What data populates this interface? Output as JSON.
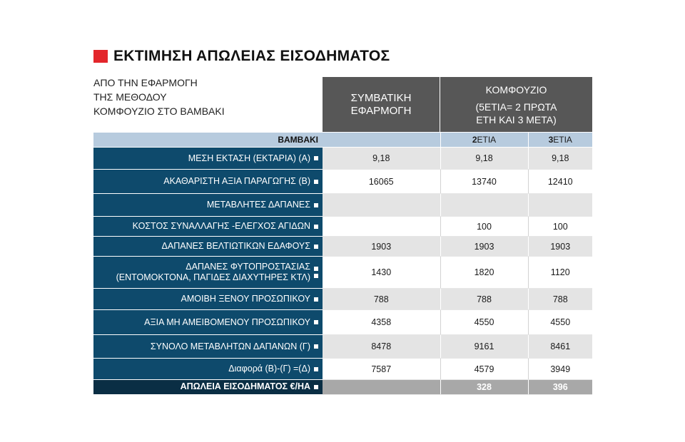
{
  "title": "ΕΚΤΙΜΗΣΗ ΑΠΩΛΕΙΑΣ ΕΙΣΟΔΗΜΑΤΟΣ",
  "accent_color": "#e3262b",
  "intro_lines": [
    "ΑΠΟ ΤΗΝ ΕΦΑΡΜΟΓΗ",
    "ΤΗΣ ΜΕΘΟΔΟΥ",
    "ΚΟΜΦΟΥΖΙΟ ΣΤΟ ΒΑΜΒΑΚΙ"
  ],
  "column_headers": {
    "conventional": [
      "ΣΥΜΒΑΤΙΚΗ",
      "ΕΦΑΡΜΟΓΗ"
    ],
    "komfouzio": "ΚΟΜΦΟΥΖΙΟ",
    "komfouzio_sub": [
      "(5ΕΤΙΑ= 2 ΠΡΩΤΑ",
      "ΕΤΗ ΚΑΙ 3 ΜΕΤΑ)"
    ]
  },
  "subheader": {
    "crop": "ΒΑΜΒΑΚΙ",
    "col2_bold": "2",
    "col2_rest": "ΕΤΙΑ",
    "col3_bold": "3",
    "col3_rest": "ΕΤΙΑ"
  },
  "rows": [
    {
      "label": [
        "ΜΕΣΗ ΕΚΤΑΣΗ (ΕΚΤΑΡΙΑ) (Α)"
      ],
      "conv": "9,18",
      "y2": "9,18",
      "y3": "9,18"
    },
    {
      "label": [
        "ΑΚΑΘΑΡΙΣΤΗ ΑΞΙΑ ΠΑΡΑΓΩΓΗΣ (Β)"
      ],
      "conv": "16065",
      "y2": "13740",
      "y3": "12410"
    },
    {
      "label": [
        "ΜΕΤΑΒΛΗΤΕΣ ΔΑΠΑΝΕΣ"
      ],
      "conv": "",
      "y2": "",
      "y3": ""
    },
    {
      "label": [
        "ΚΟΣΤΟΣ ΣΥΝΑΛΛΑΓΗΣ -ΕΛΕΓΧΟΣ ΑΓΙΔΩΝ"
      ],
      "conv": "",
      "y2": "100",
      "y3": "100"
    },
    {
      "label": [
        "ΔΑΠΑΝΕΣ ΒΕΛΤΙΩΤΙΚΩΝ ΕΔΑΦΟΥΣ"
      ],
      "conv": "1903",
      "y2": "1903",
      "y3": "1903"
    },
    {
      "label": [
        "ΔΑΠΑΝΕΣ ΦΥΤΟΠΡΟΣΤΑΣΙΑΣ",
        "(ΕΝΤΟΜΟΚΤΟΝΑ, ΠΑΓΙΔΕΣ ΔΙΑΧΥΤΗΡΕΣ ΚΤΛ)"
      ],
      "conv": "1430",
      "y2": "1820",
      "y3": "1120"
    },
    {
      "label": [
        "ΑΜΟΙΒΗ ΞΕΝΟΥ ΠΡΟΣΩΠΙΚΟΥ"
      ],
      "conv": "788",
      "y2": "788",
      "y3": "788"
    },
    {
      "label": [
        "ΑΞΙΑ ΜΗ ΑΜΕΙΒΟΜΕΝΟΥ ΠΡΟΣΩΠΙΚΟΥ"
      ],
      "conv": "4358",
      "y2": "4550",
      "y3": "4550"
    },
    {
      "label": [
        "ΣΥΝΟΛΟ ΜΕΤΑΒΛΗΤΩΝ ΔΑΠΑΝΩΝ (Γ)"
      ],
      "conv": "8478",
      "y2": "9161",
      "y3": "8461"
    },
    {
      "label": [
        "Διαφορά (Β)-(Γ) =(Δ)"
      ],
      "conv": "7587",
      "y2": "4579",
      "y3": "3949"
    }
  ],
  "final_row": {
    "label": "ΑΠΩΛΕΙΑ ΕΙΣΟΔΗΜΑΤΟΣ €/ΗΑ",
    "conv": "",
    "y2": "328",
    "y3": "396"
  }
}
